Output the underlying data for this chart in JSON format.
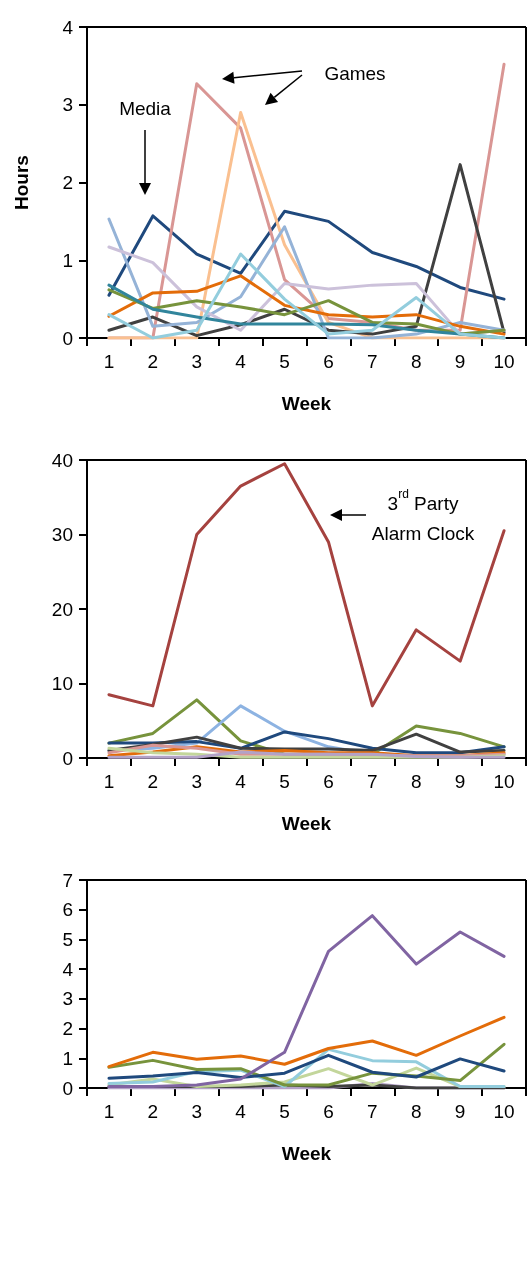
{
  "chart_data": [
    {
      "type": "line",
      "ylabel": "Hours",
      "xlabel": "Week",
      "categories": [
        "1",
        "2",
        "3",
        "4",
        "5",
        "6",
        "7",
        "8",
        "9",
        "10"
      ],
      "ylim": [
        0,
        4
      ],
      "yticks": [
        0,
        1,
        2,
        3,
        4
      ],
      "grid": false,
      "marker": "none",
      "line_style": "solid",
      "annotations": [
        "Media",
        "Games"
      ],
      "series": [
        {
          "color": "#1f497d",
          "values": [
            0.55,
            1.57,
            1.08,
            0.83,
            1.63,
            1.5,
            1.1,
            0.92,
            0.65,
            0.5
          ]
        },
        {
          "color": "#d99694",
          "values": [
            0,
            0,
            3.27,
            2.7,
            0.75,
            0.25,
            0.2,
            0.1,
            0.1,
            3.52
          ]
        },
        {
          "color": "#fac090",
          "values": [
            0,
            0,
            0,
            2.9,
            1.2,
            0.2,
            0,
            0,
            0,
            0
          ]
        },
        {
          "color": "#404040",
          "values": [
            0.1,
            0.27,
            0.03,
            0.17,
            0.37,
            0.1,
            0.05,
            0.15,
            2.23,
            0.07
          ]
        },
        {
          "color": "#95b3d7",
          "values": [
            1.53,
            0.15,
            0.2,
            0.53,
            1.43,
            0,
            0,
            0.05,
            0.2,
            0.1
          ]
        },
        {
          "color": "#ccc1da",
          "values": [
            1.17,
            0.97,
            0.4,
            0.1,
            0.7,
            0.63,
            0.68,
            0.7,
            0.05,
            0.1
          ]
        },
        {
          "color": "#e36c09",
          "values": [
            0.28,
            0.58,
            0.6,
            0.8,
            0.42,
            0.3,
            0.27,
            0.3,
            0.15,
            0.05
          ]
        },
        {
          "color": "#77933c",
          "values": [
            0.62,
            0.38,
            0.48,
            0.4,
            0.3,
            0.48,
            0.2,
            0.18,
            0.05,
            0.1
          ]
        },
        {
          "color": "#31859c",
          "values": [
            0.68,
            0.37,
            0.27,
            0.18,
            0.18,
            0.18,
            0.17,
            0.1,
            0.05,
            0
          ]
        },
        {
          "color": "#93cddd",
          "values": [
            0.3,
            0,
            0.1,
            1.08,
            0.5,
            0.05,
            0.1,
            0.52,
            0.05,
            0
          ]
        }
      ]
    },
    {
      "type": "line",
      "xlabel": "Week",
      "categories": [
        "1",
        "2",
        "3",
        "4",
        "5",
        "6",
        "7",
        "8",
        "9",
        "10"
      ],
      "ylim": [
        0,
        40
      ],
      "yticks": [
        0,
        10,
        20,
        30,
        40
      ],
      "grid": false,
      "marker": "none",
      "line_style": "solid",
      "annotations": [
        "3$^{rd}$ Party\nAlarm Clock"
      ],
      "series": [
        {
          "color": "#77933c",
          "values": [
            2,
            3.3,
            7.8,
            2.3,
            0.5,
            0.5,
            0.5,
            4.3,
            3.3,
            1.5
          ]
        },
        {
          "color": "#8db3e2",
          "values": [
            1,
            1.3,
            2,
            7,
            3.6,
            1.5,
            0.5,
            0.3,
            0.3,
            0.5
          ]
        },
        {
          "color": "#1f497d",
          "values": [
            2,
            2,
            2.2,
            1.3,
            3.5,
            2.6,
            1.3,
            0.7,
            0.7,
            1.5
          ]
        },
        {
          "color": "#404040",
          "values": [
            1,
            1.8,
            2.8,
            1.3,
            1.2,
            1.2,
            1,
            3.2,
            0.8,
            1
          ]
        },
        {
          "color": "#e36c09",
          "values": [
            0.3,
            0.8,
            1.5,
            0.8,
            1,
            0.7,
            0.7,
            0.3,
            0.3,
            0.7
          ]
        },
        {
          "color": "#d99694",
          "values": [
            0.7,
            1.7,
            1.3,
            0.5,
            0.5,
            0.5,
            0.3,
            0.3,
            0.3,
            0.5
          ]
        },
        {
          "color": "#c3d69b",
          "values": [
            1.3,
            0.7,
            0.5,
            0.1,
            0.1,
            0.1,
            0.1,
            0.1,
            0.1,
            0.3
          ]
        },
        {
          "color": "#b3a2c7",
          "values": [
            0.1,
            0.1,
            0.1,
            0.8,
            0.5,
            0.5,
            0.5,
            0.2,
            0.1,
            0.1
          ]
        },
        {
          "color": "#a5423f",
          "values": [
            8.5,
            7,
            30,
            36.5,
            39.5,
            29,
            7,
            17.2,
            13,
            30.5
          ]
        }
      ]
    },
    {
      "type": "line",
      "xlabel": "Week",
      "categories": [
        "1",
        "2",
        "3",
        "4",
        "5",
        "6",
        "7",
        "8",
        "9",
        "10"
      ],
      "ylim": [
        0,
        7
      ],
      "yticks": [
        0,
        1,
        2,
        3,
        4,
        5,
        6,
        7
      ],
      "grid": false,
      "marker": "none",
      "line_style": "solid",
      "series": [
        {
          "color": "#b3a2c7",
          "values": [
            0,
            0,
            0,
            0,
            0,
            0,
            0.15,
            0,
            0,
            0
          ]
        },
        {
          "color": "#404040",
          "values": [
            0.05,
            0.05,
            0.05,
            0.05,
            0.1,
            0.05,
            0.1,
            0,
            0,
            0
          ]
        },
        {
          "color": "#c3d69b",
          "values": [
            0.1,
            0.3,
            0.05,
            0.1,
            0.2,
            0.65,
            0.1,
            0.67,
            0.05,
            0.05
          ]
        },
        {
          "color": "#93cddd",
          "values": [
            0.15,
            0.2,
            0.55,
            0.6,
            0.05,
            1.3,
            0.92,
            0.88,
            0.05,
            0.05
          ]
        },
        {
          "color": "#77933c",
          "values": [
            0.7,
            0.93,
            0.62,
            0.65,
            0.1,
            0.1,
            0.5,
            0.4,
            0.25,
            1.47
          ]
        },
        {
          "color": "#1f497d",
          "values": [
            0.33,
            0.4,
            0.52,
            0.35,
            0.5,
            1.1,
            0.53,
            0.37,
            0.98,
            0.57
          ]
        },
        {
          "color": "#e36c09",
          "values": [
            0.72,
            1.2,
            0.97,
            1.08,
            0.8,
            1.33,
            1.58,
            1.1,
            1.75,
            2.38
          ]
        },
        {
          "color": "#8064a2",
          "values": [
            0.05,
            0.05,
            0.1,
            0.3,
            1.2,
            4.6,
            5.8,
            4.17,
            5.25,
            4.43
          ]
        }
      ]
    }
  ]
}
